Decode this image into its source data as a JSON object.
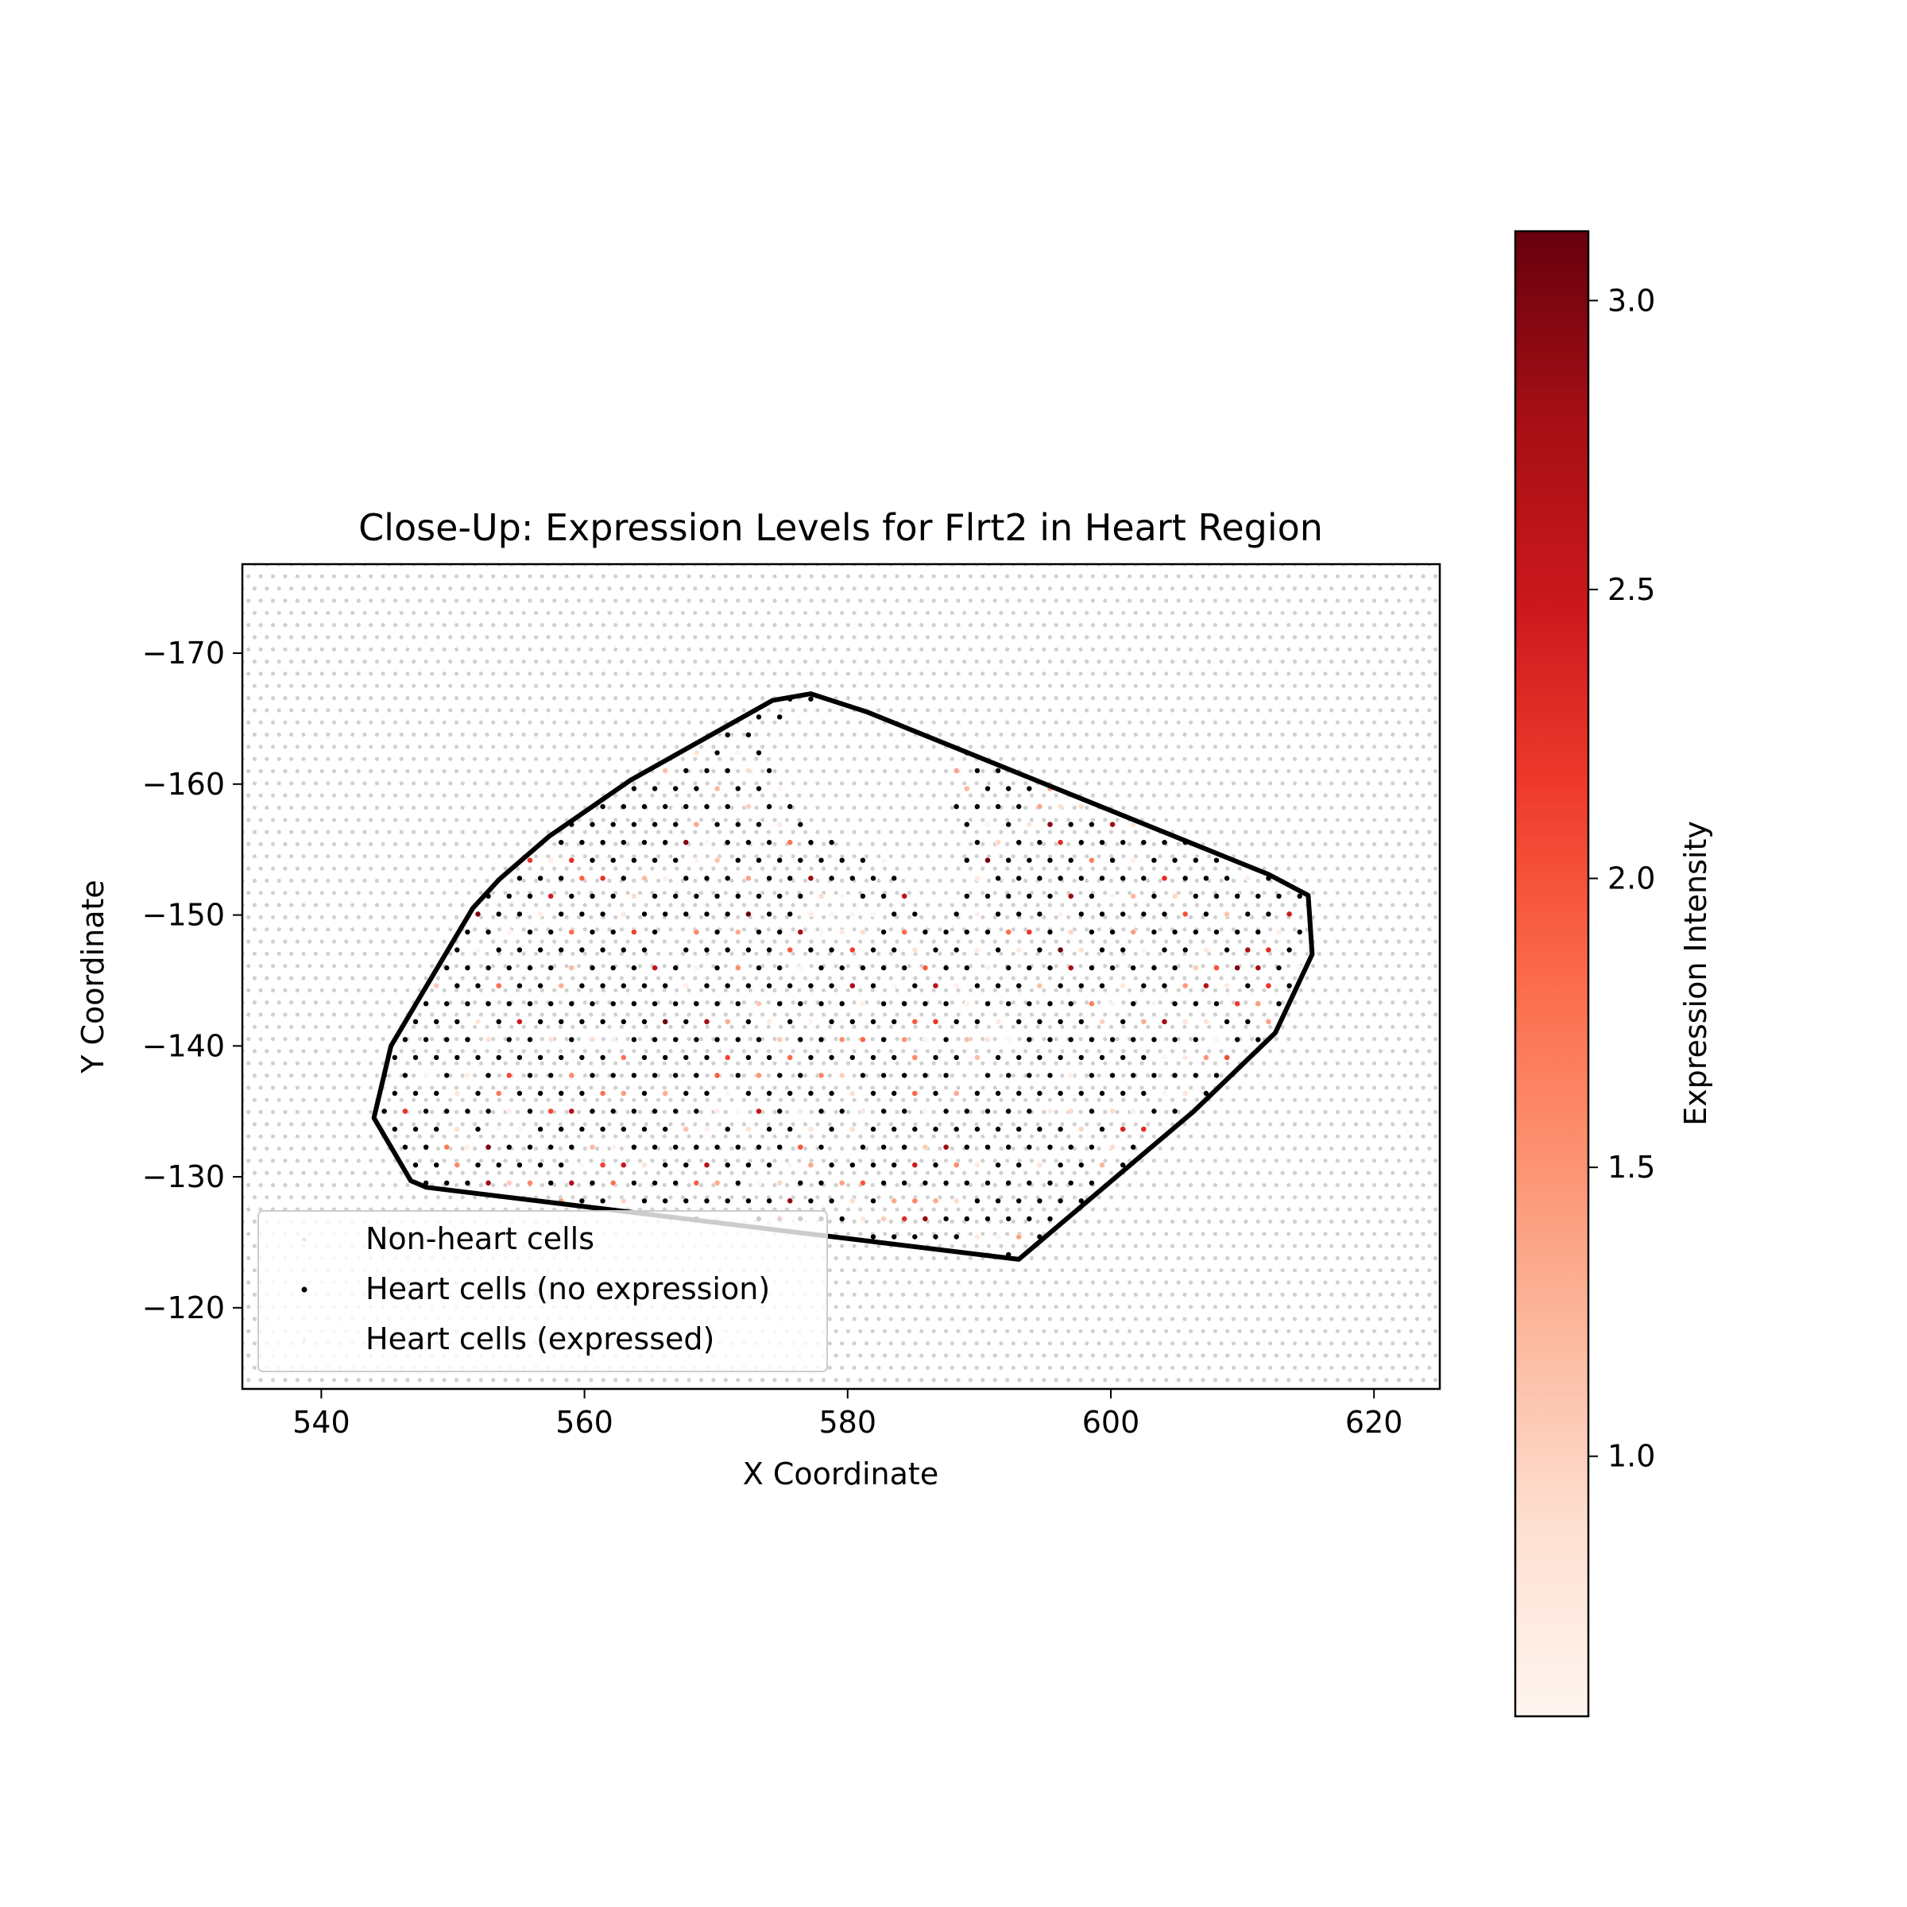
{
  "chart_data": {
    "type": "scatter",
    "title": "Close-Up: Expression Levels for Flrt2 in Heart Region",
    "xlabel": "X Coordinate",
    "ylabel": "Y Coordinate",
    "xlim": [
      534,
      625
    ],
    "ylim": [
      -176.8,
      -113.8
    ],
    "y_axis_inverted": true,
    "xticks": [
      "540",
      "560",
      "580",
      "600",
      "620"
    ],
    "yticks": [
      "−170",
      "−160",
      "−150",
      "−140",
      "−130",
      "−120"
    ],
    "grid": false,
    "legend_position": "lower left",
    "legend": {
      "entries": [
        "Non-heart cells",
        "Heart cells (no expression)",
        "Heart cells (expressed)"
      ]
    },
    "colorbar": {
      "label": "Expression Intensity",
      "colormap": "Reds",
      "range": [
        0.55,
        3.12
      ],
      "ticks": [
        "1.0",
        "1.5",
        "2.0",
        "2.5",
        "3.0"
      ]
    },
    "heart_region_boundary": [
      [
        544.0,
        -134.5
      ],
      [
        545.3,
        -140.0
      ],
      [
        551.5,
        -150.5
      ],
      [
        553.5,
        -152.7
      ],
      [
        557.3,
        -156.0
      ],
      [
        563.5,
        -160.3
      ],
      [
        574.3,
        -166.4
      ],
      [
        577.2,
        -166.9
      ],
      [
        581.5,
        -165.5
      ],
      [
        612.0,
        -153.1
      ],
      [
        615.0,
        -151.5
      ],
      [
        615.3,
        -147.0
      ],
      [
        612.5,
        -141.0
      ],
      [
        606.3,
        -135.0
      ],
      [
        593.0,
        -123.7
      ],
      [
        548.0,
        -129.2
      ],
      [
        546.8,
        -129.7
      ]
    ],
    "cell_grid": {
      "spacing": 0.93,
      "non_heart_color": "#c0c0c0",
      "no_expression_color": "#000000"
    },
    "excluded_regions": [
      {
        "polygon": [
          [
            586.5,
            -149.2
          ],
          [
            584.5,
            -154.0
          ],
          [
            577.0,
            -156.5
          ],
          [
            574.5,
            -161.0
          ],
          [
            573.8,
            -164.7
          ],
          [
            577.5,
            -165.9
          ],
          [
            588.0,
            -164.8
          ],
          [
            588.5,
            -152.0
          ]
        ]
      },
      {
        "polygon": [
          [
            566.2,
            -146.5
          ],
          [
            567.6,
            -148.0
          ],
          [
            566.3,
            -149.4
          ],
          [
            564.9,
            -148.0
          ]
        ]
      },
      {
        "polygon": [
          [
            589.2,
            -136.8
          ],
          [
            590.6,
            -138.3
          ],
          [
            589.2,
            -139.8
          ],
          [
            587.8,
            -138.3
          ]
        ]
      },
      {
        "polygon": [
          [
            580.0,
            -130.6
          ],
          [
            581.4,
            -132.0
          ],
          [
            580.0,
            -133.4
          ],
          [
            578.6,
            -132.0
          ]
        ]
      },
      {
        "polygon": [
          [
            547.4,
            -143.8
          ],
          [
            548.8,
            -145.2
          ],
          [
            547.4,
            -146.6
          ],
          [
            546.0,
            -145.2
          ]
        ]
      }
    ],
    "expression_fraction": 0.3,
    "value_range": [
      0.55,
      3.12
    ]
  }
}
